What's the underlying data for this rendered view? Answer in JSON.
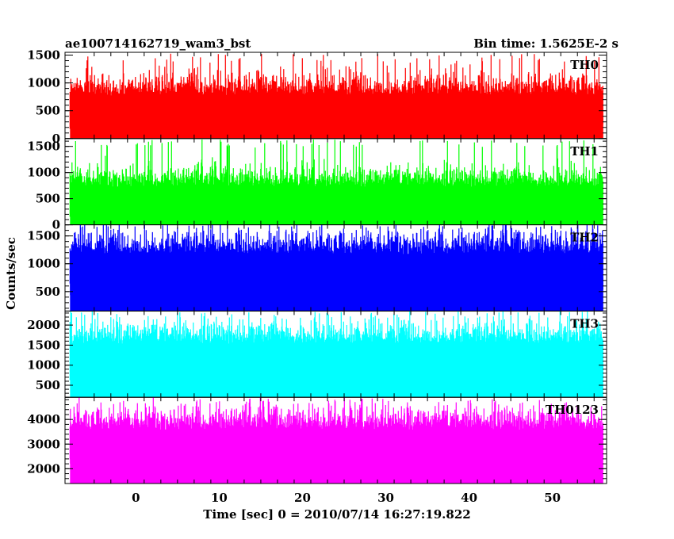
{
  "header": {
    "title": "ae100714162719_wam3_bst",
    "bin_time": "Bin time: 1.5625E-2 s"
  },
  "chart_data": {
    "type": "line",
    "title": "ae100714162719_wam3_bst",
    "xlabel": "Time [sec] 0 = 2010/07/14 16:27:19.822",
    "ylabel": "Counts/sec",
    "xlim": [
      -8.5,
      56.5
    ],
    "data_x_range": [
      -7.9,
      56.1
    ],
    "x_ticks": [
      0,
      10,
      20,
      30,
      40,
      50
    ],
    "bin_time_sec": 0.015625,
    "grid": false,
    "series": [
      {
        "name": "TH0",
        "color": "#ff0000",
        "ylim": [
          0,
          1550
        ],
        "y_ticks": [
          0,
          500,
          1000,
          1500
        ],
        "baseline": 0,
        "mean": 560,
        "spread": 235,
        "peak": 1500
      },
      {
        "name": "TH1",
        "color": "#00ff00",
        "ylim": [
          0,
          1650
        ],
        "y_ticks": [
          0,
          500,
          1000,
          1500
        ],
        "baseline": 0,
        "mean": 520,
        "spread": 225,
        "peak": 1600
      },
      {
        "name": "TH2",
        "color": "#0000ff",
        "ylim": [
          150,
          1700
        ],
        "y_ticks": [
          500,
          1000,
          1500
        ],
        "baseline": 150,
        "mean": 940,
        "spread": 250,
        "peak": 1650
      },
      {
        "name": "TH3",
        "color": "#00ffff",
        "ylim": [
          200,
          2350
        ],
        "y_ticks": [
          500,
          1000,
          1500,
          2000
        ],
        "baseline": 200,
        "mean": 1230,
        "spread": 330,
        "peak": 2300
      },
      {
        "name": "TH0123",
        "color": "#ff00ff",
        "ylim": [
          1400,
          4900
        ],
        "y_ticks": [
          2000,
          3000,
          4000
        ],
        "baseline": 1400,
        "mean": 3080,
        "spread": 540,
        "peak": 4750
      }
    ]
  }
}
